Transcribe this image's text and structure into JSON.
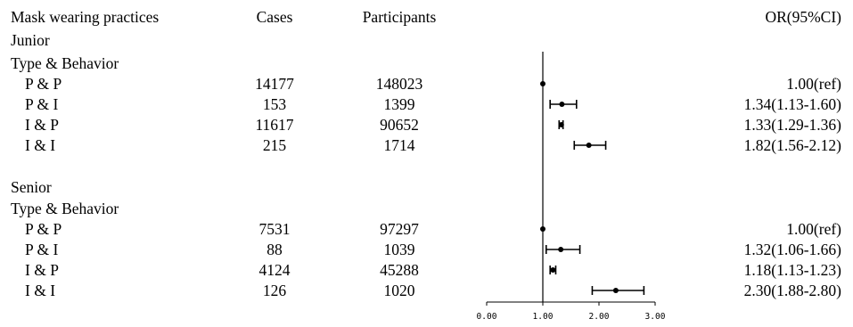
{
  "headers": {
    "practices": "Mask wearing practices",
    "cases": "Cases",
    "participants": "Participants",
    "or": "OR(95%CI)"
  },
  "groups": [
    {
      "name": "Junior",
      "subheading": "Type & Behavior",
      "rows": [
        {
          "label": "P & P",
          "cases": "14177",
          "participants": "148023",
          "or_text": "1.00(ref)",
          "or": 1.0,
          "lo": 1.0,
          "hi": 1.0
        },
        {
          "label": "P & I",
          "cases": "153",
          "participants": "1399",
          "or_text": "1.34(1.13-1.60)",
          "or": 1.34,
          "lo": 1.13,
          "hi": 1.6
        },
        {
          "label": "I & P",
          "cases": "11617",
          "participants": "90652",
          "or_text": "1.33(1.29-1.36)",
          "or": 1.33,
          "lo": 1.29,
          "hi": 1.36
        },
        {
          "label": "I & I",
          "cases": "215",
          "participants": "1714",
          "or_text": "1.82(1.56-2.12)",
          "or": 1.82,
          "lo": 1.56,
          "hi": 2.12
        }
      ]
    },
    {
      "name": "Senior",
      "subheading": "Type & Behavior",
      "rows": [
        {
          "label": "P & P",
          "cases": "7531",
          "participants": "97297",
          "or_text": "1.00(ref)",
          "or": 1.0,
          "lo": 1.0,
          "hi": 1.0
        },
        {
          "label": "P & I",
          "cases": "88",
          "participants": "1039",
          "or_text": "1.32(1.06-1.66)",
          "or": 1.32,
          "lo": 1.06,
          "hi": 1.66
        },
        {
          "label": "I & P",
          "cases": "4124",
          "participants": "45288",
          "or_text": "1.18(1.13-1.23)",
          "or": 1.18,
          "lo": 1.13,
          "hi": 1.23
        },
        {
          "label": "I & I",
          "cases": "126",
          "participants": "1020",
          "or_text": "2.30(1.88-2.80)",
          "or": 2.3,
          "lo": 1.88,
          "hi": 2.8
        }
      ]
    }
  ],
  "chart_data": {
    "type": "scatter",
    "subtype": "forest-plot",
    "categories": [
      "Junior P & P",
      "Junior P & I",
      "Junior I & P",
      "Junior I & I",
      "Senior P & P",
      "Senior P & I",
      "Senior I & P",
      "Senior I & I"
    ],
    "values": [
      1.0,
      1.34,
      1.33,
      1.82,
      1.0,
      1.32,
      1.18,
      2.3
    ],
    "ci_low": [
      1.0,
      1.13,
      1.29,
      1.56,
      1.0,
      1.06,
      1.13,
      1.88
    ],
    "ci_high": [
      1.0,
      1.6,
      1.36,
      2.12,
      1.0,
      1.66,
      1.23,
      2.8
    ],
    "reference_line": 1.0,
    "xlim": [
      0,
      3
    ],
    "xticks": [
      "0.00",
      "1.00",
      "2.00",
      "3.00"
    ],
    "title": "",
    "xlabel": "",
    "ylabel": "",
    "grid": false,
    "legend": "none",
    "colors": {
      "mark": "#000000"
    }
  }
}
